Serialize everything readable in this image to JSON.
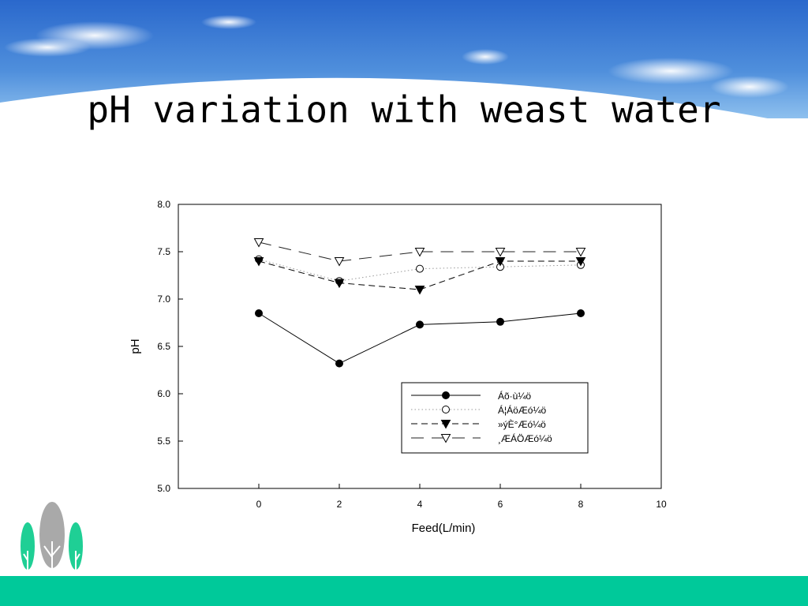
{
  "slide": {
    "title": "pH variation with weast water",
    "colors": {
      "sky_top": "#2d6fd0",
      "sky_light": "#7db3ea",
      "footer": "#00c99a",
      "logo_green": "#1fcf95",
      "logo_gray": "#a9a9a9"
    },
    "icons": [
      "sky-clouds-banner",
      "tree-logo-icon"
    ]
  },
  "chart_data": {
    "type": "line",
    "title": "",
    "xlabel": "Feed(L/min)",
    "ylabel": "pH",
    "xlim": [
      -2,
      10
    ],
    "ylim": [
      5.0,
      8.0
    ],
    "xticks": [
      0,
      2,
      4,
      6,
      8,
      10
    ],
    "yticks": [
      5.0,
      5.5,
      6.0,
      6.5,
      7.0,
      7.5,
      8.0
    ],
    "xtick_labels": [
      "0",
      "2",
      "4",
      "6",
      "8",
      "10"
    ],
    "ytick_labels": [
      "5.0",
      "5.5",
      "6.0",
      "6.5",
      "7.0",
      "7.5",
      "8.0"
    ],
    "grid": false,
    "legend_position": "bottom-right",
    "x": [
      0,
      2,
      4,
      6,
      8
    ],
    "series": [
      {
        "name": "Áõ·ù¼ö",
        "values": [
          6.85,
          6.32,
          6.73,
          6.76,
          6.85
        ],
        "marker": "filled-circle",
        "line": "solid"
      },
      {
        "name": "Á¦ÁöÆó¼ö",
        "values": [
          7.42,
          7.19,
          7.32,
          7.34,
          7.36
        ],
        "marker": "open-circle",
        "line": "dotted"
      },
      {
        "name": "»ýÈ°Æó¼ö",
        "values": [
          7.4,
          7.17,
          7.1,
          7.4,
          7.4
        ],
        "marker": "filled-triangle-down",
        "line": "dashed"
      },
      {
        "name": "¸ÆÁÖÆó¼ö",
        "values": [
          7.6,
          7.4,
          7.5,
          7.5,
          7.5
        ],
        "marker": "open-triangle-down",
        "line": "long-dash"
      }
    ]
  }
}
